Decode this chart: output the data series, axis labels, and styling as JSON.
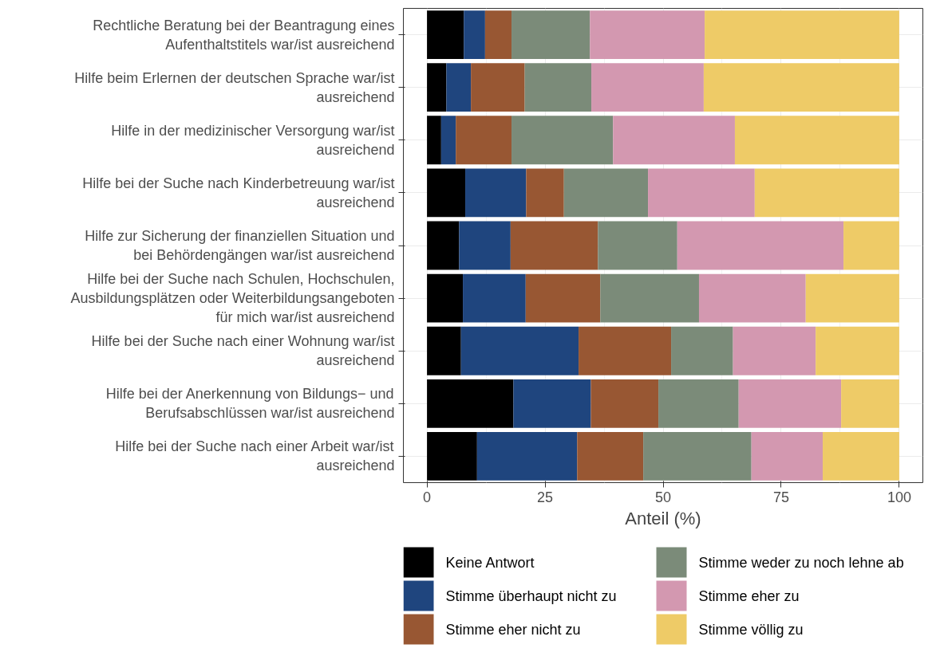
{
  "chart_data": {
    "type": "bar",
    "orientation": "horizontal",
    "stacked": true,
    "xlabel": "Anteil (%)",
    "categories": [
      "Rechtliche Beratung bei der Beantragung eines\nAufenthaltstitels war/ist ausreichend",
      "Hilfe beim Erlernen der deutschen Sprache war/ist\nausreichend",
      "Hilfe in der medizinischer Versorgung war/ist\nausreichend",
      "Hilfe bei der Suche nach Kinderbetreuung war/ist\nausreichend",
      "Hilfe zur Sicherung der finanziellen Situation und\nbei Behördengängen war/ist ausreichend",
      "Hilfe bei der Suche nach Schulen, Hochschulen,\nAusbildungsplätzen oder Weiterbildungsangeboten\nfür mich war/ist ausreichend",
      "Hilfe bei der Suche nach einer Wohnung war/ist\nausreichend",
      "Hilfe bei der Anerkennung von Bildungs− und\nBerufsabschlüssen war/ist ausreichend",
      "Hilfe bei der Suche nach einer Arbeit war/ist\nausreichend"
    ],
    "series": [
      {
        "name": "Keine Antwort",
        "color": "#000000",
        "values": [
          7.8,
          4.1,
          3.0,
          8.1,
          6.8,
          7.6,
          7.2,
          18.3,
          10.6
        ]
      },
      {
        "name": "Stimme überhaupt nicht zu",
        "color": "#1f457e",
        "values": [
          4.5,
          5.2,
          3.1,
          12.9,
          10.9,
          13.3,
          24.9,
          16.4,
          21.2
        ]
      },
      {
        "name": "Stimme eher nicht zu",
        "color": "#985733",
        "values": [
          5.6,
          11.4,
          11.8,
          8.0,
          18.5,
          15.8,
          19.6,
          14.3,
          14.0
        ]
      },
      {
        "name": "Stimme weder zu noch lehne ab",
        "color": "#7b8b79",
        "values": [
          16.6,
          14.1,
          21.5,
          17.8,
          16.8,
          20.9,
          13.1,
          17.0,
          22.9
        ]
      },
      {
        "name": "Stimme eher zu",
        "color": "#d398b0",
        "values": [
          24.3,
          23.8,
          25.8,
          22.6,
          35.2,
          22.6,
          17.5,
          21.7,
          15.1
        ]
      },
      {
        "name": "Stimme völlig zu",
        "color": "#eecb67",
        "values": [
          41.2,
          41.4,
          34.8,
          30.6,
          11.8,
          19.8,
          17.7,
          12.3,
          16.2
        ]
      }
    ],
    "xlim": [
      -5,
      105
    ],
    "xticks": [
      0,
      25,
      50,
      75,
      100
    ],
    "grid": true,
    "legend": "bottom"
  }
}
